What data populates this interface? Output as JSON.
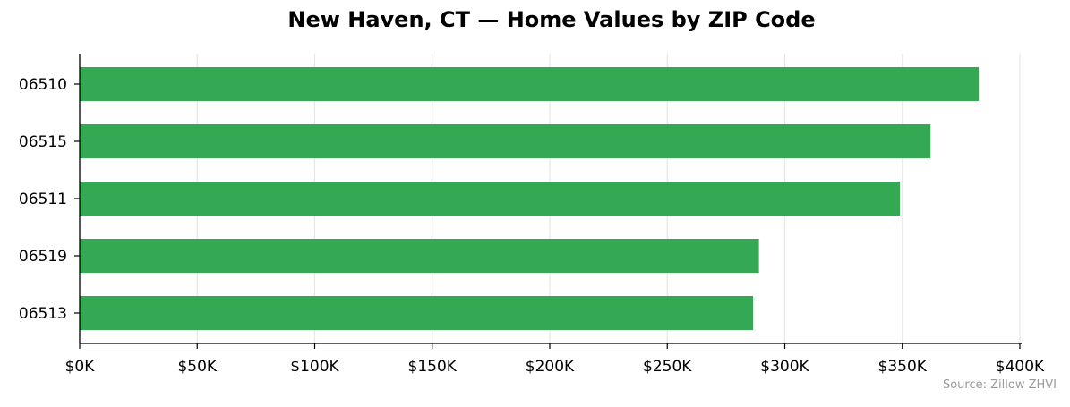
{
  "chart_data": {
    "type": "bar",
    "orientation": "horizontal",
    "title": "New Haven, CT — Home Values by ZIP Code",
    "source": "Source: Zillow ZHVI",
    "categories": [
      "06510",
      "06515",
      "06511",
      "06519",
      "06513"
    ],
    "values": [
      382500,
      362000,
      349000,
      289000,
      286500
    ],
    "xlim": [
      0,
      400000
    ],
    "xticks": [
      0,
      50000,
      100000,
      150000,
      200000,
      250000,
      300000,
      350000,
      400000
    ],
    "xtick_labels": [
      "$0K",
      "$50K",
      "$100K",
      "$150K",
      "$200K",
      "$250K",
      "$300K",
      "$350K",
      "$400K"
    ],
    "xlabel": "",
    "ylabel": "",
    "grid": "x-axis vertical gridlines",
    "bar_color": "#34a853",
    "grid_color": "#e6e6e6",
    "axis_color": "#000000"
  }
}
